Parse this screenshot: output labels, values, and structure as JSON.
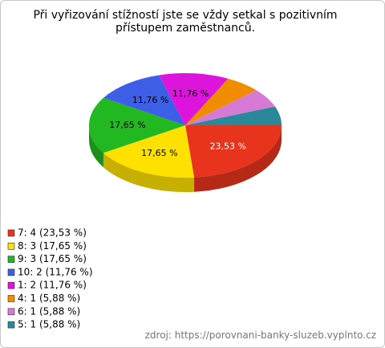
{
  "chart_data": {
    "type": "pie",
    "title": "Při vyřizování stížností jste se vždy setkal s pozitivním přístupem zaměstnanců.",
    "categories": [
      "7: 4 (23,53 %)",
      "8: 3 (17,65 %)",
      "9: 3 (17,65 %)",
      "10: 2 (11,76 %)",
      "1: 2 (11,76 %)",
      "4: 1 (5,88 %)",
      "6: 1 (5,88 %)",
      "5: 1 (5,88 %)"
    ],
    "values": [
      23.53,
      17.65,
      17.65,
      11.76,
      11.76,
      5.88,
      5.88,
      5.88
    ],
    "value_labels": [
      "23,53 %",
      "17,65 %",
      "17,65 %",
      "11,76 %",
      "11,76 %",
      null,
      null,
      null
    ],
    "colors": [
      "#e8341c",
      "#ffe100",
      "#22b822",
      "#3d5fe6",
      "#dc14dc",
      "#f08c00",
      "#d67ad6",
      "#2a8898"
    ],
    "source": "zdroj: https://porovnani-banky-sluzeb.vyplnto.cz"
  }
}
